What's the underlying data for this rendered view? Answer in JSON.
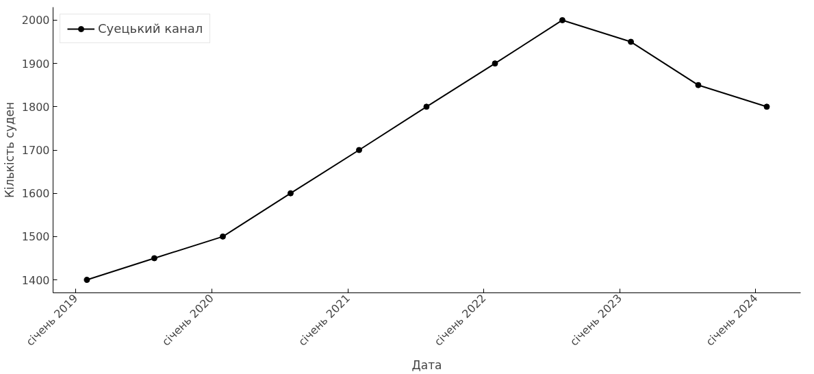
{
  "chart_data": {
    "type": "line",
    "xlabel": "Дата",
    "ylabel": "Кількість суден",
    "x": [
      "2019-01-31",
      "2019-07-31",
      "2020-01-31",
      "2020-07-31",
      "2021-01-31",
      "2021-07-31",
      "2022-01-31",
      "2022-07-31",
      "2023-01-31",
      "2023-07-31",
      "2024-01-31"
    ],
    "series": [
      {
        "name": "Суецький канал",
        "color": "#000000",
        "values": [
          1400,
          1450,
          1500,
          1600,
          1700,
          1800,
          1900,
          2000,
          1950,
          1850,
          1800
        ]
      }
    ],
    "xlim": [
      "2018-11-01",
      "2024-05-01"
    ],
    "xticks": [
      {
        "value": "2019-01-01",
        "label": "січень 2019"
      },
      {
        "value": "2020-01-01",
        "label": "січень 2020"
      },
      {
        "value": "2021-01-01",
        "label": "січень 2021"
      },
      {
        "value": "2022-01-01",
        "label": "січень 2022"
      },
      {
        "value": "2023-01-01",
        "label": "січень 2023"
      },
      {
        "value": "2024-01-01",
        "label": "січень 2024"
      }
    ],
    "ylim": [
      1370,
      2030
    ],
    "yticks": [
      1400,
      1500,
      1600,
      1700,
      1800,
      1900,
      2000
    ],
    "grid": false,
    "legend": "top left",
    "marker": "circle",
    "line_style": "solid"
  }
}
